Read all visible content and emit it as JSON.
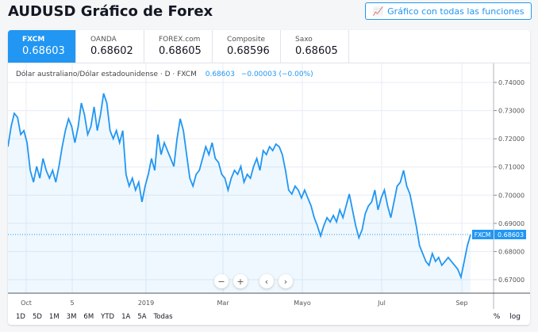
{
  "header": {
    "title": "AUDUSD Gráfico de Forex",
    "full_chart_button": "Gráfico con todas las funciones"
  },
  "tabs": [
    {
      "name": "FXCM",
      "value": "0.68603",
      "active": true
    },
    {
      "name": "OANDA",
      "value": "0.68602"
    },
    {
      "name": "FOREX.com",
      "value": "0.68605"
    },
    {
      "name": "Composite",
      "value": "0.68596"
    },
    {
      "name": "Saxo",
      "value": "0.68605"
    }
  ],
  "legend": {
    "symbol": "Dólar australiano/Dólar estadounidense · D · FXCM",
    "last": "0.68603",
    "change": "−0.00003 (−0.00%)"
  },
  "ranges": [
    "1D",
    "5D",
    "1M",
    "3M",
    "6M",
    "YTD",
    "1A",
    "5A",
    "Todas"
  ],
  "scale": {
    "percent": "%",
    "log": "log"
  },
  "colors": {
    "accent": "#2196f3"
  },
  "chart_data": {
    "type": "area",
    "ylim": [
      0.665,
      0.7435
    ],
    "y_ticks": [
      "0.74000",
      "0.73000",
      "0.72000",
      "0.71000",
      "0.70000",
      "0.69000",
      "0.68000",
      "0.67000"
    ],
    "x_ticks": [
      "Oct",
      "5",
      "2019",
      "Mar",
      "Mayo",
      "Jul",
      "Sep"
    ],
    "last_label": "FXCM",
    "last_value": "0.68603",
    "values": [
      0.7172,
      0.7243,
      0.729,
      0.7276,
      0.7215,
      0.7229,
      0.7186,
      0.7088,
      0.7046,
      0.7102,
      0.706,
      0.713,
      0.7088,
      0.706,
      0.7088,
      0.7046,
      0.7102,
      0.7172,
      0.7229,
      0.7271,
      0.7243,
      0.7186,
      0.7243,
      0.7327,
      0.7285,
      0.7215,
      0.7243,
      0.7313,
      0.7229,
      0.7285,
      0.7361,
      0.7327,
      0.7229,
      0.72,
      0.7229,
      0.7186,
      0.7229,
      0.7074,
      0.7032,
      0.706,
      0.7018,
      0.7046,
      0.6976,
      0.7032,
      0.7074,
      0.713,
      0.7088,
      0.7215,
      0.7144,
      0.7186,
      0.7158,
      0.713,
      0.7102,
      0.72,
      0.7271,
      0.7229,
      0.7144,
      0.706,
      0.7032,
      0.7074,
      0.7088,
      0.713,
      0.7172,
      0.7144,
      0.7186,
      0.713,
      0.7116,
      0.7074,
      0.706,
      0.7018,
      0.706,
      0.7088,
      0.7074,
      0.7102,
      0.7046,
      0.7074,
      0.706,
      0.7102,
      0.713,
      0.7088,
      0.7158,
      0.7144,
      0.7172,
      0.7158,
      0.7181,
      0.7172,
      0.7144,
      0.7088,
      0.7018,
      0.7004,
      0.7032,
      0.7018,
      0.699,
      0.7018,
      0.699,
      0.6962,
      0.692,
      0.6891,
      0.6855,
      0.6891,
      0.692,
      0.6905,
      0.6928,
      0.6905,
      0.6948,
      0.692,
      0.6962,
      0.7004,
      0.6948,
      0.6891,
      0.6849,
      0.6877,
      0.6934,
      0.6962,
      0.6976,
      0.7018,
      0.6948,
      0.699,
      0.7018,
      0.6962,
      0.692,
      0.6976,
      0.7032,
      0.7046,
      0.7088,
      0.7032,
      0.7004,
      0.6948,
      0.6891,
      0.6821,
      0.6793,
      0.6765,
      0.6751,
      0.6793,
      0.6765,
      0.6779,
      0.6751,
      0.6765,
      0.6779,
      0.6765,
      0.6751,
      0.6737,
      0.6709,
      0.6765,
      0.6821,
      0.686
    ]
  }
}
